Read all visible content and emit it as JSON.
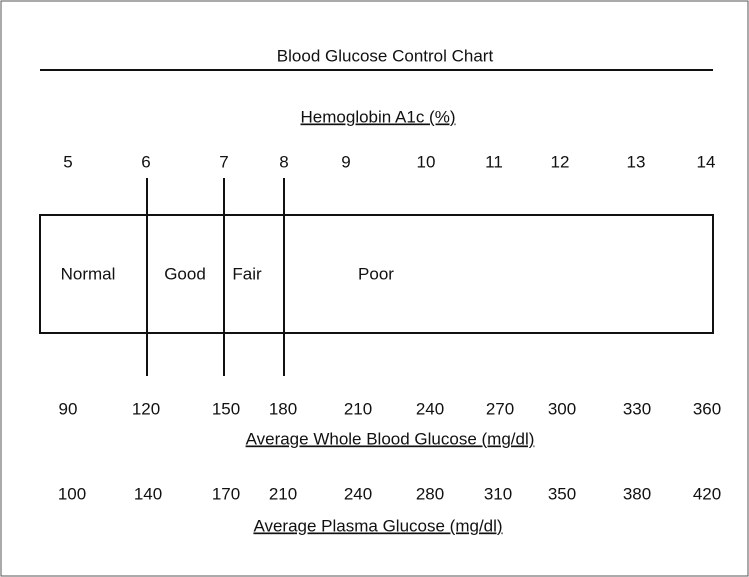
{
  "title": "Blood Glucose Control Chart",
  "hba1c": {
    "label": "Hemoglobin A1c (%)",
    "values": [
      5,
      6,
      7,
      8,
      9,
      10,
      11,
      12,
      13,
      14
    ]
  },
  "zones": [
    "Normal",
    "Good",
    "Fair",
    "Poor"
  ],
  "whole_blood": {
    "label": "Average Whole Blood Glucose (mg/dl)",
    "values": [
      90,
      120,
      150,
      180,
      210,
      240,
      270,
      300,
      330,
      360
    ]
  },
  "plasma": {
    "label": "Average Plasma Glucose (mg/dl)",
    "values": [
      100,
      140,
      170,
      210,
      240,
      280,
      310,
      350,
      380,
      420
    ]
  }
}
